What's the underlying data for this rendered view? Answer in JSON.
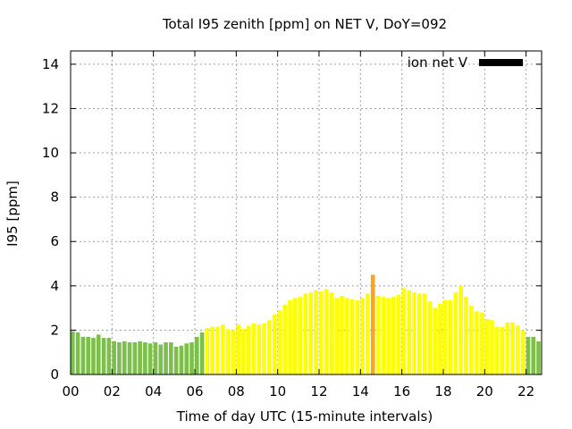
{
  "chart_data": {
    "type": "bar",
    "title": "Total I95 zenith [ppm] on NET V, DoY=092",
    "xlabel": "Time of day UTC (15-minute intervals)",
    "ylabel": "I95 [ppm]",
    "xlim": [
      0,
      22.75
    ],
    "ylim": [
      0,
      14.6
    ],
    "xticks": [
      "00",
      "02",
      "04",
      "06",
      "08",
      "10",
      "12",
      "14",
      "16",
      "18",
      "20",
      "22"
    ],
    "yticks": [
      "0",
      "2",
      "4",
      "6",
      "8",
      "10",
      "12",
      "14"
    ],
    "grid": true,
    "legend": {
      "position": "top-right",
      "entries": [
        {
          "name": "ion net V",
          "color": "#000000"
        }
      ]
    },
    "colors": {
      "low": "#7cbf4a",
      "moderate": "#ffff00",
      "elevated": "#f5a623"
    },
    "interval_hours": 0.25,
    "series": [
      {
        "values": [
          1.95,
          1.9,
          1.7,
          1.7,
          1.65,
          1.8,
          1.65,
          1.65,
          1.5,
          1.45,
          1.5,
          1.45,
          1.45,
          1.5,
          1.45,
          1.4,
          1.45,
          1.35,
          1.45,
          1.45,
          1.25,
          1.3,
          1.4,
          1.45,
          1.7,
          1.9,
          2.1,
          2.15,
          2.15,
          2.25,
          2.05,
          2.0,
          2.25,
          2.05,
          2.2,
          2.3,
          2.25,
          2.3,
          2.45,
          2.7,
          2.9,
          3.15,
          3.35,
          3.45,
          3.5,
          3.65,
          3.7,
          3.8,
          3.75,
          3.85,
          3.7,
          3.45,
          3.55,
          3.45,
          3.4,
          3.35,
          3.45,
          3.65,
          4.5,
          3.55,
          3.5,
          3.45,
          3.5,
          3.6,
          3.9,
          3.8,
          3.7,
          3.65,
          3.65,
          3.3,
          3.0,
          3.2,
          3.35,
          3.35,
          3.7,
          4.0,
          3.5,
          3.1,
          2.85,
          2.8,
          2.5,
          2.45,
          2.15,
          2.15,
          2.35,
          2.35,
          2.2,
          2.0,
          1.7,
          1.7,
          1.5
        ],
        "levels": [
          "low",
          "low",
          "low",
          "low",
          "low",
          "low",
          "low",
          "low",
          "low",
          "low",
          "low",
          "low",
          "low",
          "low",
          "low",
          "low",
          "low",
          "low",
          "low",
          "low",
          "low",
          "low",
          "low",
          "low",
          "low",
          "low",
          "moderate",
          "moderate",
          "moderate",
          "moderate",
          "moderate",
          "moderate",
          "moderate",
          "moderate",
          "moderate",
          "moderate",
          "moderate",
          "moderate",
          "moderate",
          "moderate",
          "moderate",
          "moderate",
          "moderate",
          "moderate",
          "moderate",
          "moderate",
          "moderate",
          "moderate",
          "moderate",
          "moderate",
          "moderate",
          "moderate",
          "moderate",
          "moderate",
          "moderate",
          "moderate",
          "moderate",
          "moderate",
          "elevated",
          "moderate",
          "moderate",
          "moderate",
          "moderate",
          "moderate",
          "moderate",
          "moderate",
          "moderate",
          "moderate",
          "moderate",
          "moderate",
          "moderate",
          "moderate",
          "moderate",
          "moderate",
          "moderate",
          "moderate",
          "moderate",
          "moderate",
          "moderate",
          "moderate",
          "moderate",
          "moderate",
          "moderate",
          "moderate",
          "moderate",
          "moderate",
          "moderate",
          "moderate",
          "low",
          "low",
          "low"
        ]
      }
    ]
  }
}
